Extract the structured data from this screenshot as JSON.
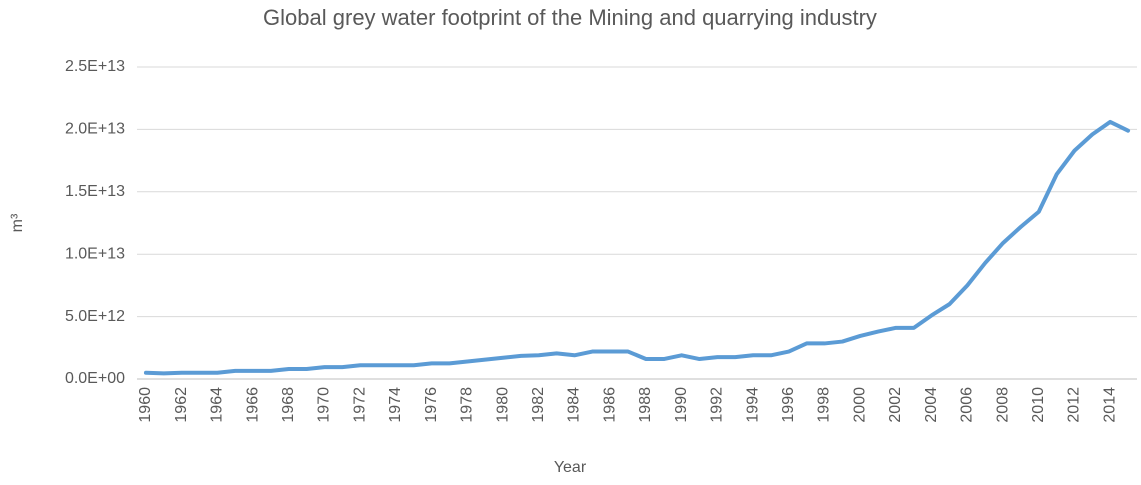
{
  "chart_data": {
    "type": "line",
    "title": "Global grey water footprint  of the Mining and quarrying industry",
    "x_label": "Year",
    "y_label": "m³",
    "categories": [
      "1960",
      null,
      "1962",
      null,
      "1964",
      null,
      "1966",
      null,
      "1968",
      null,
      "1970",
      null,
      "1972",
      null,
      "1974",
      null,
      "1976",
      null,
      "1978",
      null,
      "1980",
      null,
      "1982",
      null,
      "1984",
      null,
      "1986",
      null,
      "1988",
      null,
      "1990",
      null,
      "1992",
      null,
      "1994",
      null,
      "1996",
      null,
      "1998",
      null,
      "2000",
      null,
      "2002",
      null,
      "2004",
      null,
      "2006",
      null,
      "2008",
      null,
      "2010",
      null,
      "2012",
      null,
      "2014",
      null
    ],
    "series": [
      {
        "name": "Grey water footprint",
        "color": "#5b9bd5",
        "values": [
          500000000000.0,
          450000000000.0,
          500000000000.0,
          500000000000.0,
          500000000000.0,
          650000000000.0,
          650000000000.0,
          650000000000.0,
          800000000000.0,
          800000000000.0,
          950000000000.0,
          950000000000.0,
          1100000000000.0,
          1100000000000.0,
          1100000000000.0,
          1100000000000.0,
          1250000000000.0,
          1250000000000.0,
          1400000000000.0,
          1550000000000.0,
          1700000000000.0,
          1850000000000.0,
          1900000000000.0,
          2050000000000.0,
          1900000000000.0,
          2200000000000.0,
          2200000000000.0,
          2200000000000.0,
          1600000000000.0,
          1600000000000.0,
          1900000000000.0,
          1600000000000.0,
          1750000000000.0,
          1750000000000.0,
          1900000000000.0,
          1900000000000.0,
          2200000000000.0,
          2850000000000.0,
          2850000000000.0,
          3000000000000.0,
          3450000000000.0,
          3800000000000.0,
          4100000000000.0,
          4100000000000.0,
          5100000000000.0,
          6000000000000.0,
          7500000000000.0,
          9300000000000.0,
          10900000000000.0,
          12200000000000.0,
          13400000000000.0,
          16400000000000.0,
          18300000000000.0,
          19600000000000.0,
          20600000000000.0,
          19900000000000.0
        ]
      }
    ],
    "ylim": [
      0,
      25000000000000.0
    ],
    "yticks": [
      {
        "value": 0,
        "label": "0.0E+00"
      },
      {
        "value": 5000000000000.0,
        "label": "5.0E+12"
      },
      {
        "value": 10000000000000.0,
        "label": "1.0E+13"
      },
      {
        "value": 15000000000000.0,
        "label": "1.5E+13"
      },
      {
        "value": 20000000000000.0,
        "label": "2.0E+13"
      },
      {
        "value": 25000000000000.0,
        "label": "2.5E+13"
      }
    ],
    "grid": true
  }
}
